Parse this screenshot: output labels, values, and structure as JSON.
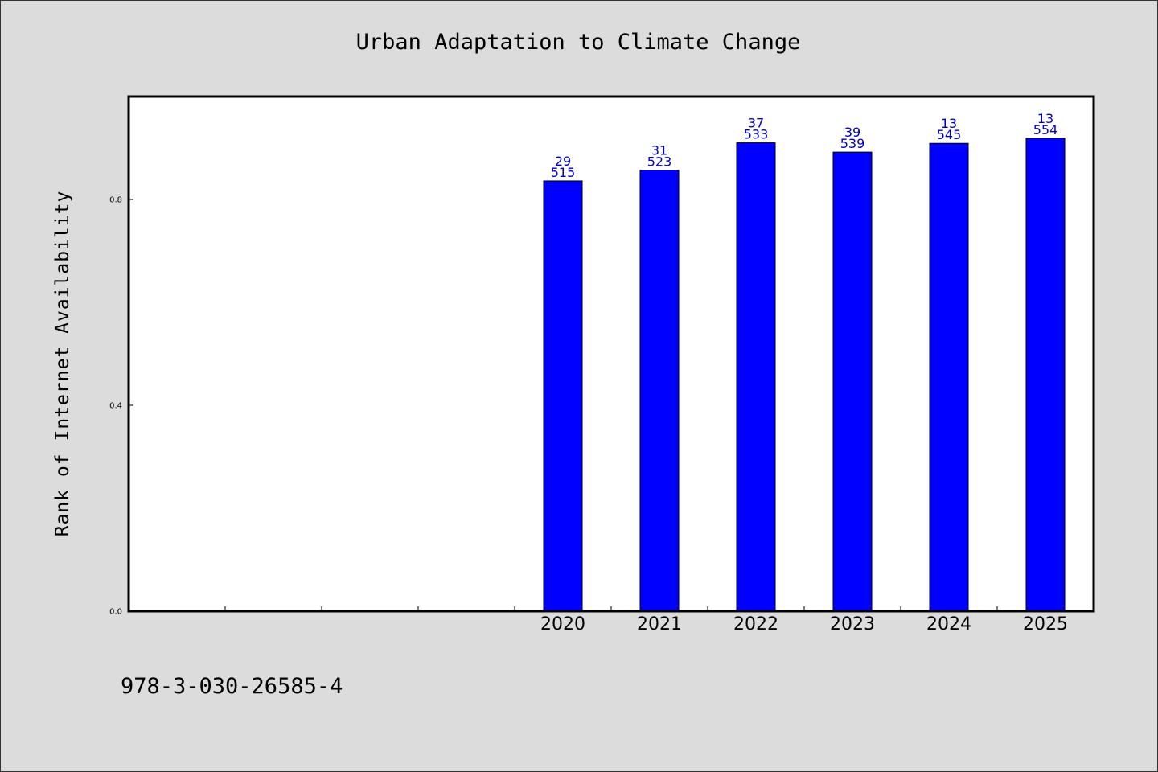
{
  "chart_data": {
    "type": "bar",
    "title": "Urban Adaptation to Climate Change",
    "ylabel": "Rank of Internet Availability",
    "xlabel": "",
    "categories": [
      "",
      "",
      "",
      "",
      "2020",
      "2021",
      "2022",
      "2023",
      "2024",
      "2025"
    ],
    "values": [
      null,
      null,
      null,
      null,
      0.836,
      0.857,
      0.91,
      0.892,
      0.909,
      0.919
    ],
    "bar_labels": [
      null,
      null,
      null,
      null,
      [
        "29",
        "515"
      ],
      [
        "31",
        "523"
      ],
      [
        "37",
        "533"
      ],
      [
        "39",
        "539"
      ],
      [
        "13",
        "545"
      ],
      [
        "13",
        "554"
      ]
    ],
    "yticks": [
      "0.0",
      "0.4",
      "0.8"
    ],
    "ytick_values": [
      0.0,
      0.4,
      0.8
    ],
    "ylim": [
      0,
      1.0
    ],
    "grid": false,
    "bar_color": "#0000ff",
    "label_color": "#0000c8"
  },
  "footer": {
    "isbn": "978-3-030-26585-4"
  }
}
